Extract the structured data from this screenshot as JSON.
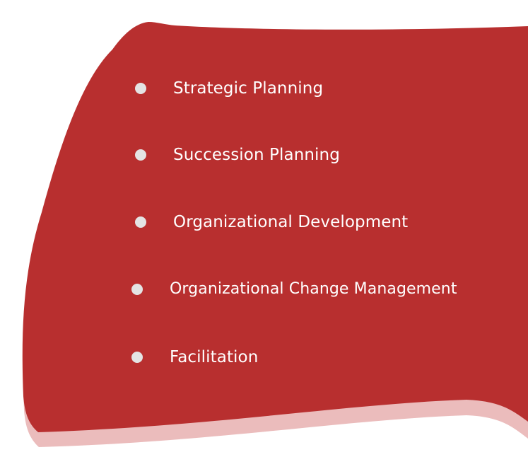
{
  "services": {
    "items": [
      {
        "label": "Strategic Planning"
      },
      {
        "label": "Succession Planning"
      },
      {
        "label": "Organizational Development"
      },
      {
        "label": "Organizational Change Management"
      },
      {
        "label": "Facilitation"
      }
    ]
  },
  "colors": {
    "banner": "#b82f2f",
    "banner_shadow": "#ebbcbc",
    "bullet": "#e4e4e4",
    "text": "#ffffff"
  }
}
